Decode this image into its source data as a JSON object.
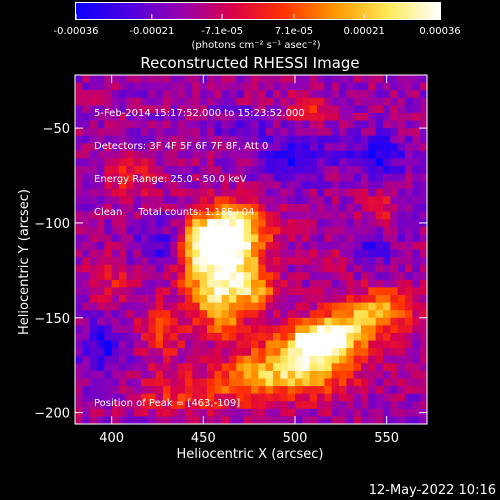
{
  "colorbar": {
    "ticks": [
      "-0.00036",
      "-0.00021",
      "-7.1e-05",
      "7.1e-05",
      "0.00021",
      "0.00036"
    ],
    "unit_label": "(photons cm⁻² s⁻¹ asec⁻²)",
    "range": [
      -0.00036,
      0.00036
    ],
    "colormap": [
      "#0a00ff",
      "#4b00e0",
      "#9400b0",
      "#d8004a",
      "#ff3300",
      "#ff9a00",
      "#ffe95a",
      "#ffffff"
    ]
  },
  "chart_data": {
    "type": "heatmap",
    "title": "Reconstructed RHESSI Image",
    "xlabel": "Heliocentric X (arcsec)",
    "ylabel": "Heliocentric Y (arcsec)",
    "xlim": [
      380,
      572
    ],
    "ylim": [
      -206,
      -22
    ],
    "x_ticks": [
      400,
      450,
      500,
      550
    ],
    "y_ticks": [
      -50,
      -100,
      -150,
      -200
    ],
    "x_tick_labels": [
      "400",
      "450",
      "500",
      "550"
    ],
    "y_tick_labels": [
      "−50",
      "−100",
      "−150",
      "−200"
    ],
    "peak_position": [
      463,
      -109
    ],
    "hotspots": [
      {
        "x": 465,
        "y": -105,
        "sx": 14,
        "sy": 10,
        "a": 1.0
      },
      {
        "x": 452,
        "y": -118,
        "sx": 12,
        "sy": 13,
        "a": 0.8
      },
      {
        "x": 470,
        "y": -128,
        "sx": 10,
        "sy": 8,
        "a": 0.6
      },
      {
        "x": 455,
        "y": -140,
        "sx": 9,
        "sy": 7,
        "a": 0.5
      },
      {
        "x": 462,
        "y": -152,
        "sx": 8,
        "sy": 7,
        "a": 0.5
      },
      {
        "x": 480,
        "y": -138,
        "sx": 8,
        "sy": 6,
        "a": 0.45
      },
      {
        "x": 508,
        "y": -172,
        "sx": 18,
        "sy": 12,
        "a": 0.85
      },
      {
        "x": 515,
        "y": -162,
        "sx": 10,
        "sy": 6,
        "a": 0.75
      },
      {
        "x": 548,
        "y": -145,
        "sx": 14,
        "sy": 8,
        "a": 0.55
      },
      {
        "x": 530,
        "y": -155,
        "sx": 12,
        "sy": 8,
        "a": 0.45
      },
      {
        "x": 478,
        "y": -182,
        "sx": 14,
        "sy": 9,
        "a": 0.5
      },
      {
        "x": 440,
        "y": -190,
        "sx": 18,
        "sy": 8,
        "a": 0.35
      },
      {
        "x": 428,
        "y": -158,
        "sx": 10,
        "sy": 10,
        "a": 0.35
      },
      {
        "x": 410,
        "y": -75,
        "sx": 10,
        "sy": 8,
        "a": 0.25
      },
      {
        "x": 505,
        "y": -40,
        "sx": 8,
        "sy": 5,
        "a": 0.3
      },
      {
        "x": 545,
        "y": -92,
        "sx": 8,
        "sy": 6,
        "a": 0.25
      },
      {
        "x": 400,
        "y": -130,
        "sx": 8,
        "sy": 8,
        "a": 0.25
      },
      {
        "x": 520,
        "y": -120,
        "sx": 8,
        "sy": 6,
        "a": 0.2
      }
    ],
    "cold_regions": [
      {
        "x": 500,
        "y": -65,
        "sx": 12,
        "sy": 8,
        "a": 0.5
      },
      {
        "x": 545,
        "y": -65,
        "sx": 12,
        "sy": 8,
        "a": 0.45
      },
      {
        "x": 430,
        "y": -112,
        "sx": 10,
        "sy": 9,
        "a": 0.45
      },
      {
        "x": 395,
        "y": -165,
        "sx": 10,
        "sy": 10,
        "a": 0.45
      },
      {
        "x": 470,
        "y": -50,
        "sx": 10,
        "sy": 6,
        "a": 0.3
      },
      {
        "x": 540,
        "y": -115,
        "sx": 9,
        "sy": 7,
        "a": 0.35
      }
    ],
    "annotations": {
      "time_range": "5-Feb-2014 15:17:52.000 to 15:23:52.000",
      "detectors": "Detectors: 3F 4F 5F 6F 7F 8F, Att 0",
      "energy": "Energy Range: 25.0 - 50.0 keV",
      "clean": "Clean     Total counts: 1.18E+04",
      "peak": "Position of Peak = [463,-109]"
    }
  },
  "footer": {
    "timestamp": "12-May-2022 10:16"
  }
}
